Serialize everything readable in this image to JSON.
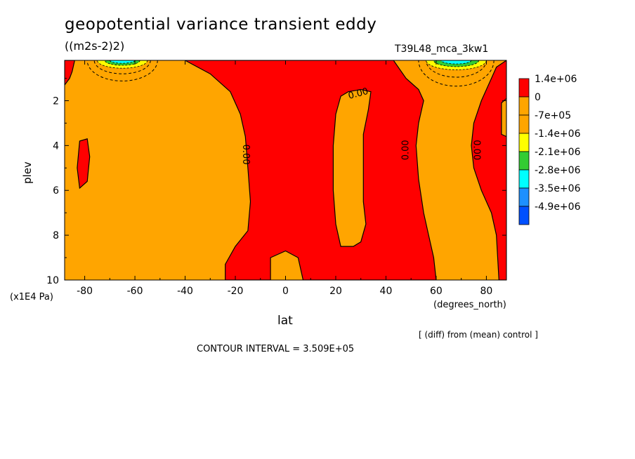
{
  "title": "geopotential variance transient eddy",
  "units": "((m2s-2)2)",
  "run_id": "T39L48_mca_3kw1",
  "y_axis_units": "(x1E4 Pa)",
  "x_axis_units": "(degrees_north)",
  "diff_note": "[ (diff) from (mean) control ]",
  "contour_interval": "CONTOUR INTERVAL = 3.509E+05",
  "chart_data": {
    "type": "heatmap",
    "title": "geopotential variance transient eddy",
    "xlabel": "lat",
    "ylabel": "plev",
    "xlim": [
      -88,
      88
    ],
    "ylim": [
      10,
      0.2
    ],
    "x_ticks": [
      -80,
      -60,
      -40,
      -20,
      0,
      20,
      40,
      60,
      80
    ],
    "x_tick_labels": [
      "-80",
      "-60",
      "-40",
      "-20",
      "0",
      "20",
      "40",
      "60",
      "80"
    ],
    "y_ticks": [
      2,
      4,
      6,
      8,
      10
    ],
    "y_tick_labels": [
      "2",
      "4",
      "6",
      "8",
      "10"
    ],
    "background_level": "-7e+05",
    "colorbar": {
      "levels": [
        "1.4e+06",
        "0",
        "-7e+05",
        "-1.4e+06",
        "-2.1e+06",
        "-2.8e+06",
        "-3.5e+06",
        "-4.9e+06"
      ],
      "colors": [
        "#ff0000",
        "#ffa500",
        "#ffa500",
        "#ffff00",
        "#33cc33",
        "#00ffff",
        "#1e90ff",
        "#0050ff"
      ]
    },
    "contour_labels": [
      {
        "text": "0.00",
        "lat": 29,
        "plev": 1.7,
        "rotate": -15
      },
      {
        "text": "0.00",
        "lat": -16,
        "plev": 4.4,
        "rotate": 90
      },
      {
        "text": "0.00",
        "lat": 48,
        "plev": 4.2,
        "rotate": -90
      },
      {
        "text": "0.00",
        "lat": 76,
        "plev": 4.2,
        "rotate": 90
      }
    ],
    "regions": [
      {
        "name": "positive-region-central",
        "level": "0",
        "color": "#ff0000",
        "points": [
          [
            -40,
            0.2
          ],
          [
            -30,
            0.8
          ],
          [
            -22,
            1.6
          ],
          [
            -18,
            2.6
          ],
          [
            -16,
            3.6
          ],
          [
            -15,
            5.0
          ],
          [
            -14,
            6.5
          ],
          [
            -15,
            7.8
          ],
          [
            -20,
            8.5
          ],
          [
            -24,
            9.3
          ],
          [
            -24,
            10
          ],
          [
            -6,
            10
          ],
          [
            -6,
            9.0
          ],
          [
            0,
            8.7
          ],
          [
            5,
            9.0
          ],
          [
            7,
            10
          ],
          [
            60,
            10
          ],
          [
            59,
            9
          ],
          [
            57,
            8
          ],
          [
            55,
            7
          ],
          [
            53,
            5.5
          ],
          [
            52,
            4
          ],
          [
            53,
            3
          ],
          [
            55,
            2
          ],
          [
            53,
            1.5
          ],
          [
            48,
            1
          ],
          [
            43,
            0.2
          ]
        ]
      },
      {
        "name": "negative-island-center",
        "level": "-7e+05",
        "color": "#ffa500",
        "points": [
          [
            22,
            1.8
          ],
          [
            25,
            1.6
          ],
          [
            30,
            1.5
          ],
          [
            34,
            1.6
          ],
          [
            33,
            2.4
          ],
          [
            31,
            3.5
          ],
          [
            31,
            5.0
          ],
          [
            31,
            6.5
          ],
          [
            32,
            7.5
          ],
          [
            30,
            8.3
          ],
          [
            27,
            8.5
          ],
          [
            22,
            8.5
          ],
          [
            20,
            7.5
          ],
          [
            19,
            6.0
          ],
          [
            19,
            4.0
          ],
          [
            20,
            2.6
          ]
        ]
      },
      {
        "name": "positive-region-east",
        "level": "0",
        "color": "#ff0000",
        "points": [
          [
            88,
            0.2
          ],
          [
            84,
            0.5
          ],
          [
            82,
            1.0
          ],
          [
            78,
            2.0
          ],
          [
            75,
            3.0
          ],
          [
            74,
            4.0
          ],
          [
            75,
            5.0
          ],
          [
            78,
            6.0
          ],
          [
            82,
            7.0
          ],
          [
            84,
            8.0
          ],
          [
            85,
            10
          ],
          [
            88,
            10
          ]
        ]
      },
      {
        "name": "negative-notch-east",
        "level": "-7e+05",
        "color": "#ffa500",
        "points": [
          [
            88,
            1.9
          ],
          [
            86,
            2.1
          ],
          [
            86,
            3.5
          ],
          [
            88,
            3.6
          ]
        ]
      },
      {
        "name": "positive-blob-west",
        "level": "0",
        "color": "#ff0000",
        "points": [
          [
            -82,
            3.8
          ],
          [
            -79,
            3.7
          ],
          [
            -78,
            4.5
          ],
          [
            -79,
            5.6
          ],
          [
            -82,
            5.9
          ],
          [
            -83,
            5.0
          ]
        ]
      },
      {
        "name": "positive-corner-west",
        "level": "0",
        "color": "#ff0000",
        "points": [
          [
            -88,
            0.2
          ],
          [
            -84,
            0.2
          ],
          [
            -85,
            0.7
          ],
          [
            -86,
            1.0
          ],
          [
            -88,
            1.3
          ]
        ]
      }
    ],
    "minima_cores": [
      {
        "name": "minimum-core-southern",
        "center_lat": -65,
        "plev_top": 0.2,
        "half_width": 14,
        "depth": 0.4,
        "layers": [
          {
            "color": "#ffff00",
            "rx": 10,
            "ry": 0.35
          },
          {
            "color": "#33cc33",
            "rx": 7,
            "ry": 0.22
          },
          {
            "color": "#00ffff",
            "rx": 5,
            "ry": 0.13
          }
        ]
      },
      {
        "name": "minimum-core-northern",
        "center_lat": 68,
        "plev_top": 0.2,
        "half_width": 15,
        "depth": 0.5,
        "layers": [
          {
            "color": "#ffff00",
            "rx": 12,
            "ry": 0.42
          },
          {
            "color": "#33cc33",
            "rx": 9,
            "ry": 0.28
          },
          {
            "color": "#00ffff",
            "rx": 6,
            "ry": 0.16
          }
        ]
      }
    ]
  }
}
